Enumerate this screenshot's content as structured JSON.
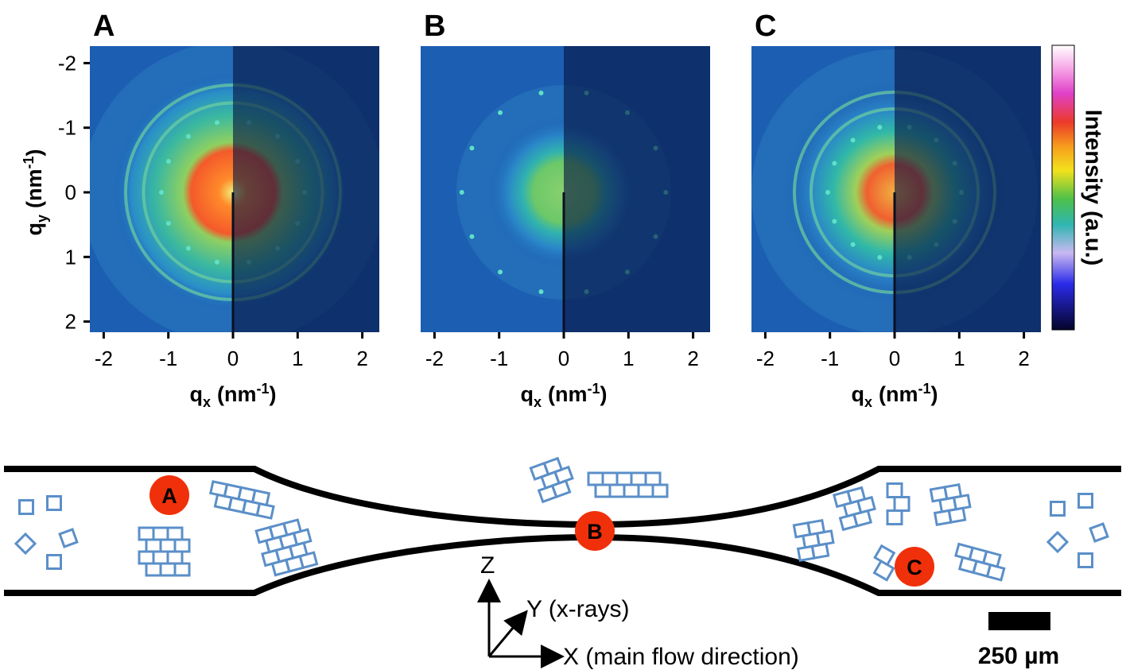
{
  "panels": [
    {
      "letter": "A"
    },
    {
      "letter": "B"
    },
    {
      "letter": "C"
    }
  ],
  "xticks": [
    -2,
    -1,
    0,
    1,
    2
  ],
  "yticks": [
    -2,
    -1,
    0,
    1,
    2
  ],
  "xlabel": {
    "q": "q",
    "sub": "x",
    "unit": "(nm",
    "sup": "-1",
    "close": ")"
  },
  "ylabel": {
    "q": "q",
    "sub": "y",
    "unit": "(nm",
    "sup": "-1",
    "close": ")"
  },
  "colorbar_label": "Intensity (a.u.)",
  "diagram": {
    "markers": [
      "A",
      "B",
      "C"
    ],
    "axes": {
      "z": "Z",
      "y": "Y (x-rays)",
      "x": "X (main flow direction)"
    },
    "scale_bar": "250 µm"
  }
}
